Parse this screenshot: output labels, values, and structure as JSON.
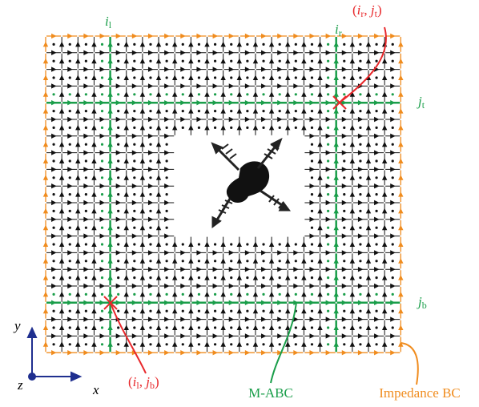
{
  "labels": {
    "i_left": {
      "base": "i",
      "sub": "l"
    },
    "i_right": {
      "base": "i",
      "sub": "r"
    },
    "j_top": {
      "base": "j",
      "sub": "t"
    },
    "j_bottom": {
      "base": "j",
      "sub": "b"
    },
    "corner_top_right": {
      "open": "(",
      "i": "i",
      "i_sub": "r",
      "sep": ", ",
      "j": "j",
      "j_sub": "t",
      "close": ")"
    },
    "corner_bottom_left": {
      "open": "(",
      "i": "i",
      "i_sub": "l",
      "sep": ", ",
      "j": "j",
      "j_sub": "b",
      "close": ")"
    },
    "m_abc": "M-ABC",
    "impedance_bc": "Impedance BC"
  },
  "axes": {
    "x": "x",
    "y": "y",
    "z": "z"
  }
}
